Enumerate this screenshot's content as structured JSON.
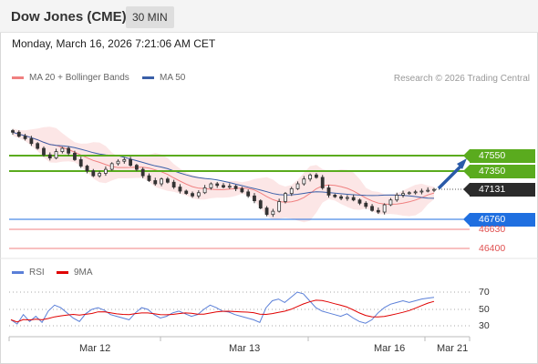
{
  "header": {
    "title": "Dow Jones (CME)",
    "timeframe": "30 MIN"
  },
  "datetime": "Monday, March 16, 2026 7:21:06 AM CET",
  "legend": {
    "ma20_label": "MA 20 + Bollinger Bands",
    "ma50_label": "MA 50",
    "credit": "Research © 2026 Trading Central",
    "colors": {
      "ma20": "#f08080",
      "ma50": "#3a5fa8"
    }
  },
  "levels": {
    "resistance_2": "47550",
    "resistance_1": "47350",
    "last_price": "47131",
    "support_1": "46760",
    "support_2": "46630",
    "support_3": "46400",
    "colors": {
      "resistance": "#5aab1e",
      "support": "#1f6fe0",
      "red": "#f08080",
      "last": "#2b2b2b"
    }
  },
  "rsi_panel": {
    "rsi_label": "RSI",
    "ma_label": "9MA",
    "levels": [
      "70",
      "50",
      "30"
    ],
    "colors": {
      "rsi": "#5a7fd8",
      "ma": "#e00000"
    }
  },
  "x_axis": {
    "labels": [
      "Mar 12",
      "Mar 13",
      "Mar 16",
      "Mar 21"
    ]
  },
  "chart_data": {
    "type": "candlestick",
    "price_axis_labels": [
      "47550",
      "47350",
      "47131",
      "46760",
      "46630",
      "46400"
    ],
    "close_series": [
      47840,
      47790,
      47760,
      47700,
      47640,
      47560,
      47520,
      47600,
      47640,
      47580,
      47500,
      47420,
      47360,
      47300,
      47330,
      47380,
      47450,
      47480,
      47500,
      47430,
      47380,
      47300,
      47240,
      47200,
      47260,
      47220,
      47160,
      47110,
      47080,
      47050,
      47090,
      47150,
      47200,
      47180,
      47160,
      47170,
      47140,
      47100,
      47050,
      46990,
      46900,
      46820,
      46860,
      46980,
      47080,
      47140,
      47200,
      47260,
      47310,
      47280,
      47150,
      47060,
      47040,
      47020,
      47030,
      47000,
      46960,
      46920,
      46870,
      46850,
      46940,
      47000,
      47060,
      47080,
      47090,
      47100,
      47110,
      47120,
      47131
    ],
    "target_arrow": {
      "from": "47131",
      "to": "47550"
    },
    "rsi_series": [
      38,
      33,
      44,
      36,
      42,
      35,
      48,
      55,
      52,
      46,
      40,
      36,
      45,
      50,
      52,
      49,
      44,
      42,
      40,
      38,
      46,
      52,
      50,
      44,
      40,
      42,
      46,
      48,
      45,
      42,
      44,
      50,
      55,
      52,
      48,
      47,
      44,
      42,
      40,
      38,
      35,
      52,
      60,
      62,
      58,
      64,
      70,
      68,
      60,
      52,
      48,
      46,
      44,
      42,
      45,
      40,
      36,
      34,
      38,
      46,
      52,
      56,
      58,
      60,
      58,
      60,
      62,
      63,
      64
    ],
    "rsi_levels": [
      70,
      50,
      30
    ]
  }
}
